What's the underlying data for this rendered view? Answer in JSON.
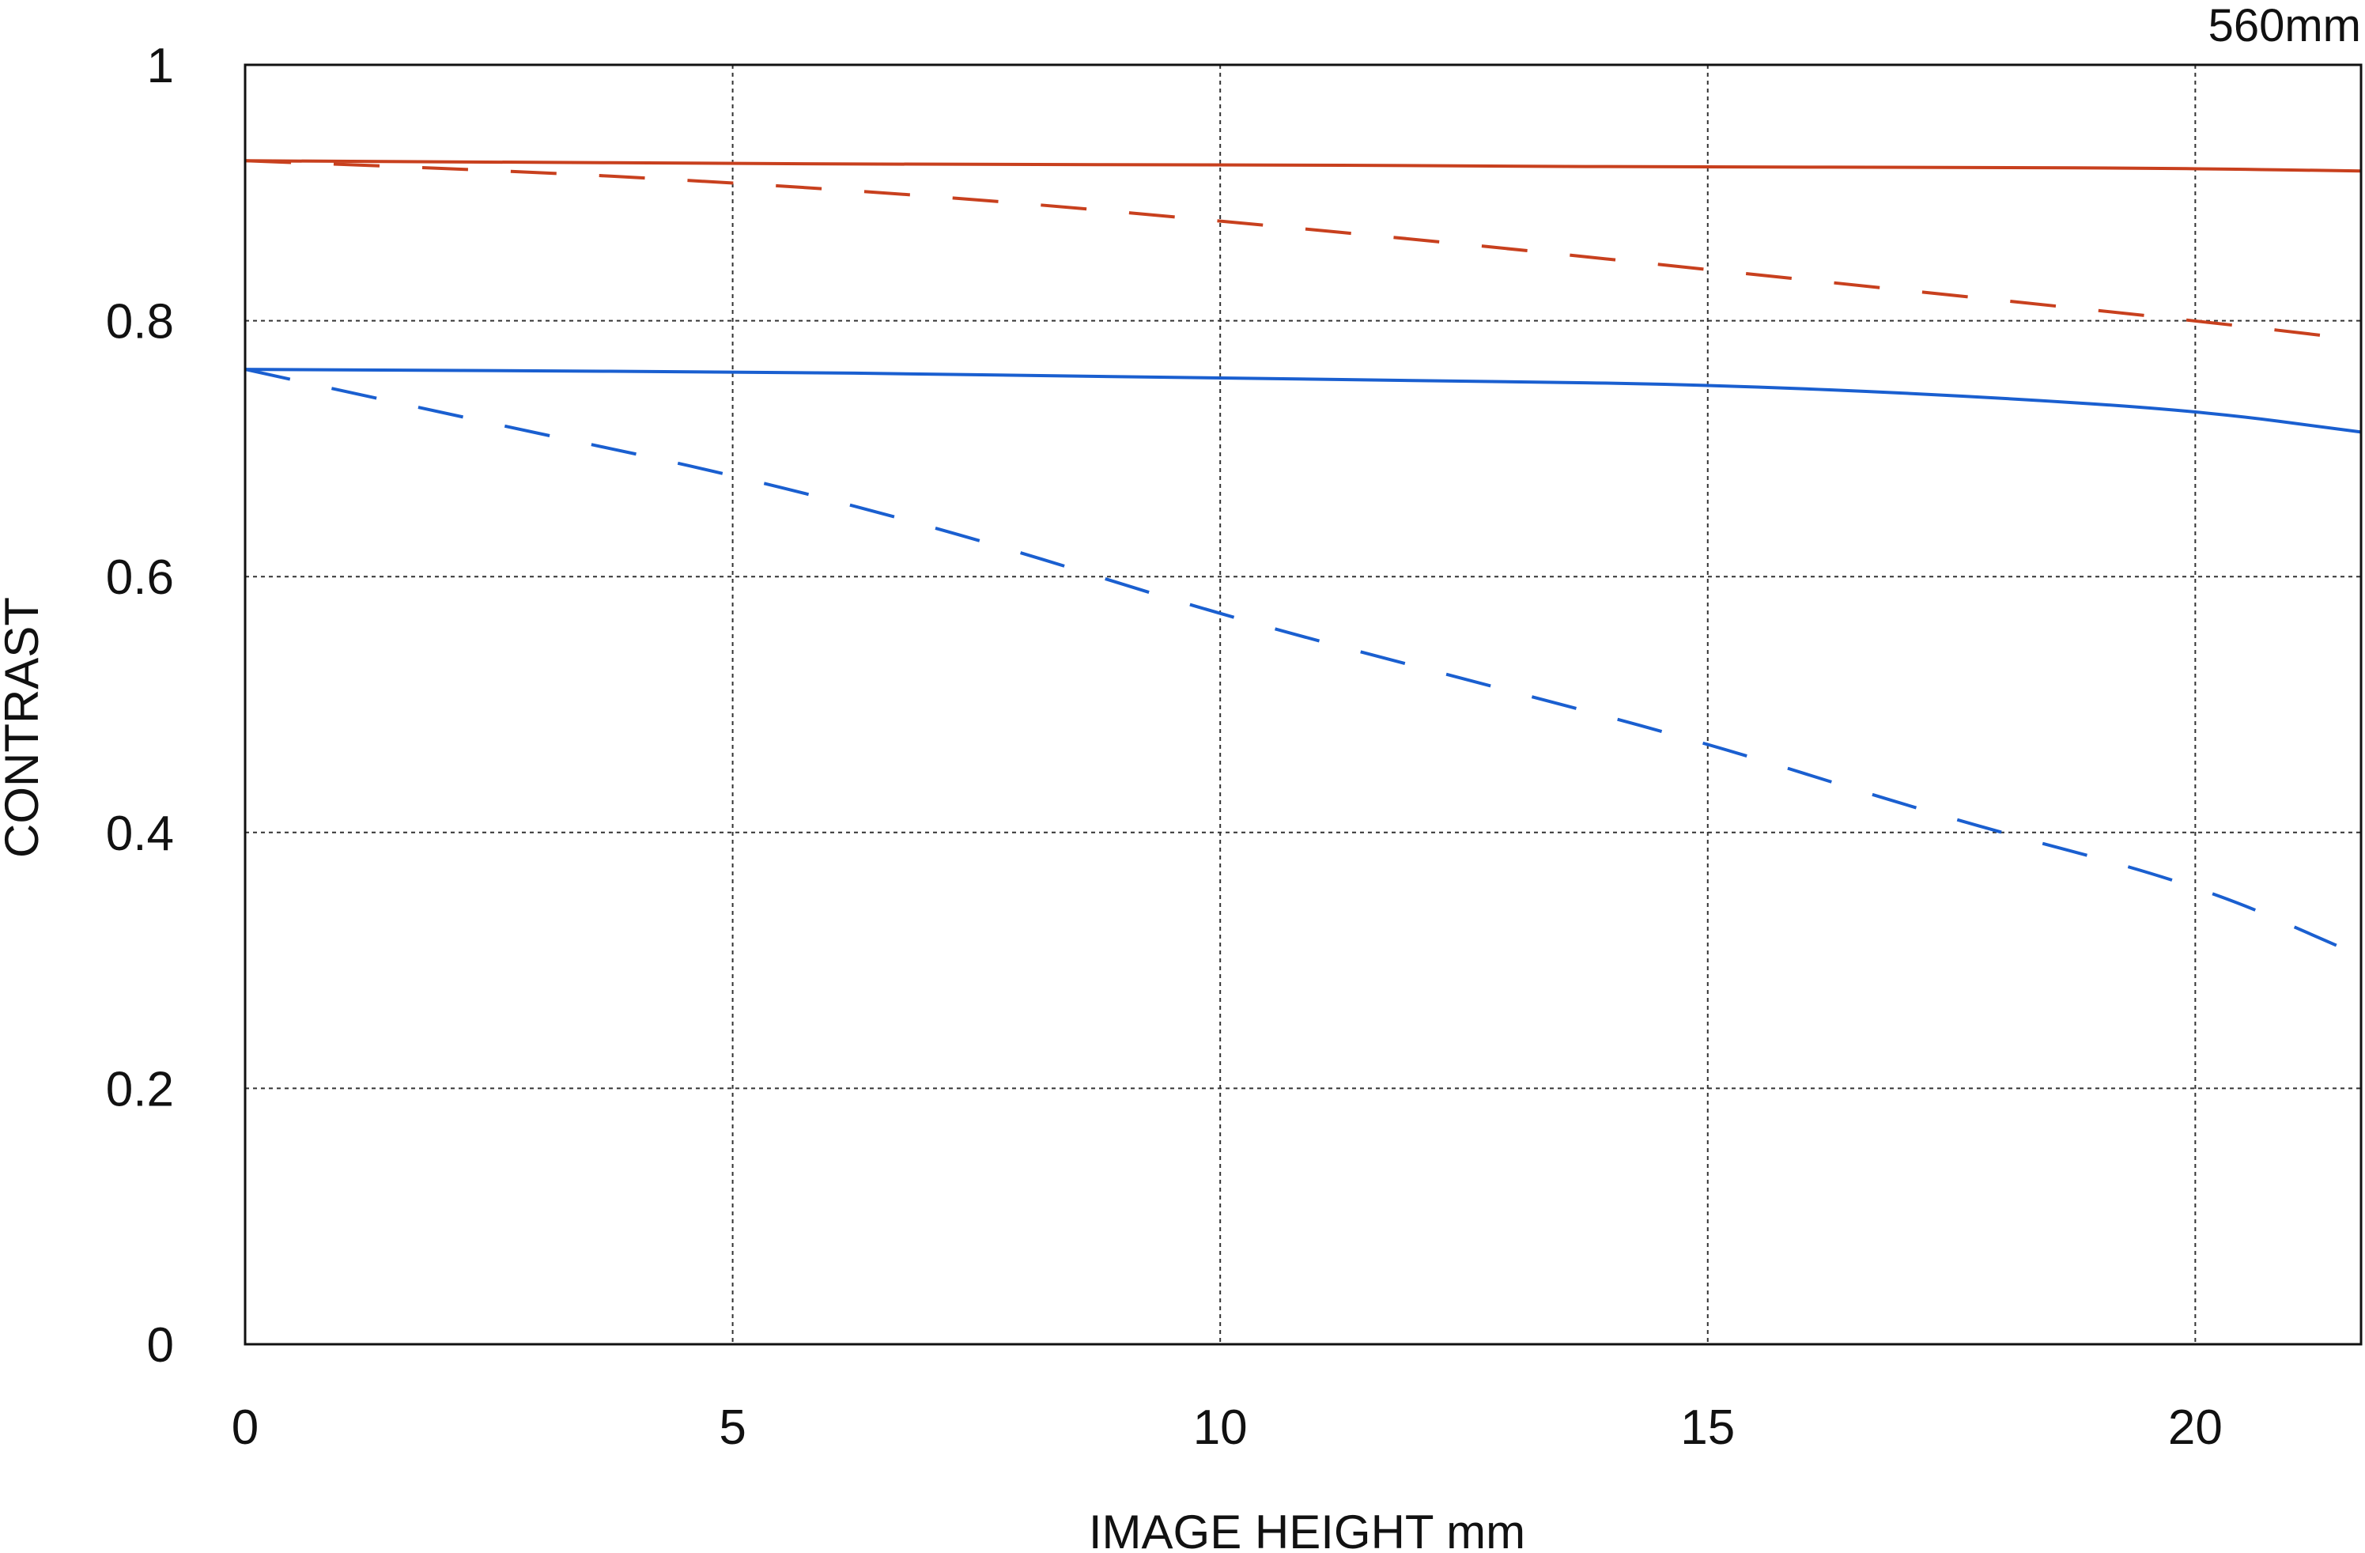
{
  "chart_data": {
    "type": "line",
    "title": "",
    "subtitle": "",
    "annotation": "560mm",
    "xlabel": "IMAGE HEIGHT  mm",
    "ylabel": "CONTRAST",
    "xlim": [
      0,
      21.7
    ],
    "ylim": [
      0,
      1
    ],
    "x_ticks": [
      0,
      5,
      10,
      15,
      20
    ],
    "y_ticks": [
      0,
      0.2,
      0.4,
      0.6,
      0.8,
      1
    ],
    "x_tick_labels": [
      "0",
      "5",
      "10",
      "15",
      "20"
    ],
    "y_tick_labels": [
      "0",
      "0.2",
      "0.4",
      "0.6",
      "0.8",
      "1"
    ],
    "grid": true,
    "legend": "none",
    "series": [
      {
        "color": "#c8401e",
        "style": "solid",
        "x": [
          0,
          2.5,
          5,
          7.5,
          10,
          12.5,
          15,
          17.5,
          20,
          21.7
        ],
        "y": [
          0.925,
          0.924,
          0.923,
          0.922,
          0.922,
          0.921,
          0.92,
          0.92,
          0.919,
          0.917
        ]
      },
      {
        "color": "#c8401e",
        "style": "dashed",
        "x": [
          0,
          2.5,
          5,
          7.5,
          10,
          12.5,
          15,
          17.5,
          20,
          21.7
        ],
        "y": [
          0.925,
          0.918,
          0.908,
          0.895,
          0.878,
          0.86,
          0.84,
          0.82,
          0.8,
          0.785
        ]
      },
      {
        "color": "#1a5fd0",
        "style": "solid",
        "x": [
          0,
          2.5,
          5,
          7.5,
          10,
          12.5,
          15,
          17.5,
          20,
          21.7
        ],
        "y": [
          0.762,
          0.761,
          0.76,
          0.758,
          0.755,
          0.753,
          0.75,
          0.742,
          0.73,
          0.713
        ]
      },
      {
        "color": "#1a5fd0",
        "style": "dashed",
        "x": [
          0,
          2.5,
          5,
          7.5,
          10,
          12.5,
          15,
          17.5,
          20,
          21.5
        ],
        "y": [
          0.762,
          0.72,
          0.68,
          0.63,
          0.57,
          0.52,
          0.47,
          0.41,
          0.36,
          0.31
        ]
      }
    ]
  }
}
